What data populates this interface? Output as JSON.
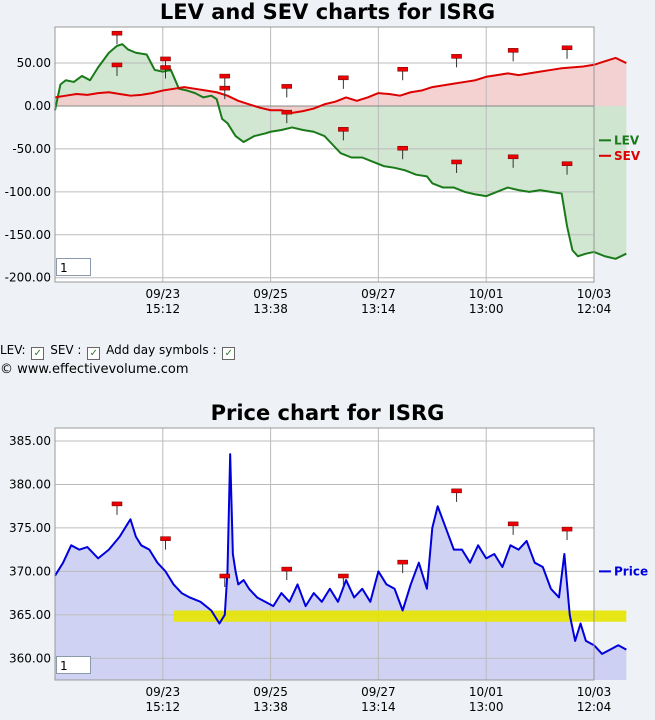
{
  "chart_data": [
    {
      "type": "line",
      "title": "LEV and SEV charts for ISRG",
      "ylim": [
        -205,
        92
      ],
      "yticks": [
        50,
        0,
        -50,
        -100,
        -150,
        -200
      ],
      "ytick_labels": [
        "50.00",
        "0.00",
        "-50.00",
        "-100.00",
        "-150.00",
        "-200.00"
      ],
      "xlim": [
        0,
        10
      ],
      "xticks": [
        2,
        4,
        6,
        8,
        10
      ],
      "xtick_labels": [
        [
          "09/23",
          "15:12"
        ],
        [
          "09/25",
          "13:38"
        ],
        [
          "09/27",
          "13:14"
        ],
        [
          "10/01",
          "13:00"
        ],
        [
          "10/03",
          "12:04"
        ]
      ],
      "legend_position": "right",
      "grid": true,
      "zoom_value": "1",
      "series": [
        {
          "name": "LEV",
          "color": "#1a7a1a",
          "fill": "#c9e3c9",
          "x": [
            0,
            0.1,
            0.2,
            0.35,
            0.5,
            0.65,
            0.8,
            1.0,
            1.15,
            1.25,
            1.35,
            1.5,
            1.7,
            1.85,
            2.0,
            2.15,
            2.3,
            2.45,
            2.6,
            2.75,
            2.9,
            3.0,
            3.1,
            3.2,
            3.35,
            3.5,
            3.7,
            3.9,
            4.0,
            4.2,
            4.4,
            4.6,
            4.8,
            5.0,
            5.15,
            5.3,
            5.5,
            5.7,
            5.9,
            6.1,
            6.3,
            6.5,
            6.7,
            6.9,
            7.0,
            7.2,
            7.4,
            7.6,
            7.8,
            8.0,
            8.2,
            8.4,
            8.6,
            8.8,
            9.0,
            9.2,
            9.4,
            9.5,
            9.6,
            9.7,
            9.85,
            10.0,
            10.2,
            10.4,
            10.6
          ],
          "y": [
            -5,
            25,
            30,
            28,
            35,
            30,
            45,
            62,
            70,
            72,
            66,
            62,
            60,
            42,
            40,
            42,
            20,
            18,
            15,
            10,
            12,
            8,
            -15,
            -20,
            -35,
            -42,
            -35,
            -32,
            -30,
            -28,
            -25,
            -28,
            -30,
            -35,
            -45,
            -55,
            -60,
            -60,
            -65,
            -70,
            -72,
            -75,
            -80,
            -82,
            -90,
            -95,
            -95,
            -100,
            -103,
            -105,
            -100,
            -95,
            -98,
            -100,
            -98,
            -100,
            -102,
            -140,
            -168,
            -175,
            -172,
            -170,
            -175,
            -178,
            -172
          ]
        },
        {
          "name": "SEV",
          "color": "#dd0000",
          "fill": "#f3caca",
          "x": [
            0,
            0.2,
            0.4,
            0.6,
            0.8,
            1.0,
            1.2,
            1.4,
            1.6,
            1.8,
            2.0,
            2.2,
            2.4,
            2.6,
            2.8,
            3.0,
            3.2,
            3.4,
            3.6,
            3.8,
            4.0,
            4.2,
            4.4,
            4.6,
            4.8,
            5.0,
            5.2,
            5.4,
            5.6,
            5.8,
            6.0,
            6.2,
            6.4,
            6.6,
            6.8,
            7.0,
            7.2,
            7.4,
            7.6,
            7.8,
            8.0,
            8.2,
            8.4,
            8.6,
            8.8,
            9.0,
            9.2,
            9.4,
            9.6,
            9.8,
            10.0,
            10.2,
            10.4,
            10.6
          ],
          "y": [
            10,
            12,
            14,
            13,
            15,
            16,
            14,
            12,
            13,
            15,
            18,
            20,
            22,
            20,
            18,
            16,
            12,
            6,
            2,
            -2,
            -5,
            -5,
            -8,
            -6,
            -3,
            2,
            5,
            10,
            6,
            10,
            15,
            14,
            12,
            16,
            18,
            22,
            24,
            26,
            28,
            30,
            34,
            36,
            38,
            36,
            38,
            40,
            42,
            44,
            45,
            46,
            48,
            52,
            56,
            50
          ]
        }
      ],
      "day_marks": {
        "LEV": {
          "x": [
            1.15,
            2.05,
            3.15,
            4.3,
            5.35,
            6.45,
            7.45,
            8.5,
            9.5
          ],
          "y": [
            72,
            42,
            8,
            -20,
            -40,
            -62,
            -78,
            -72,
            -80
          ]
        },
        "SEV": {
          "x": [
            1.15,
            2.05,
            3.15,
            4.3,
            5.35,
            6.45,
            7.45,
            8.5,
            9.5
          ],
          "y": [
            35,
            32,
            22,
            10,
            20,
            30,
            45,
            52,
            55
          ]
        }
      }
    },
    {
      "type": "area",
      "title": "Price chart for ISRG",
      "ylim": [
        357.5,
        386.5
      ],
      "yticks": [
        385,
        380,
        375,
        370,
        365,
        360
      ],
      "ytick_labels": [
        "385.00",
        "380.00",
        "375.00",
        "370.00",
        "365.00",
        "360.00"
      ],
      "xlim": [
        0,
        10
      ],
      "xticks": [
        2,
        4,
        6,
        8,
        10
      ],
      "xtick_labels": [
        [
          "09/23",
          "15:12"
        ],
        [
          "09/25",
          "13:38"
        ],
        [
          "09/27",
          "13:14"
        ],
        [
          "10/01",
          "13:00"
        ],
        [
          "10/03",
          "12:04"
        ]
      ],
      "legend_position": "right",
      "grid": true,
      "zoom_value": "1",
      "highlight_band": {
        "x": [
          2.2,
          10.6
        ],
        "y": [
          364.2,
          365.5
        ],
        "color": "#e6e600"
      },
      "series": [
        {
          "name": "Price",
          "color": "#0000dd",
          "fill": "#c8caf2",
          "x": [
            0,
            0.15,
            0.3,
            0.45,
            0.6,
            0.8,
            1.0,
            1.2,
            1.4,
            1.5,
            1.6,
            1.75,
            1.9,
            2.05,
            2.2,
            2.35,
            2.5,
            2.7,
            2.9,
            3.05,
            3.15,
            3.2,
            3.25,
            3.3,
            3.35,
            3.4,
            3.5,
            3.6,
            3.75,
            3.9,
            4.05,
            4.2,
            4.35,
            4.5,
            4.65,
            4.8,
            4.95,
            5.1,
            5.25,
            5.4,
            5.55,
            5.7,
            5.85,
            6.0,
            6.15,
            6.3,
            6.45,
            6.6,
            6.75,
            6.9,
            7.0,
            7.1,
            7.25,
            7.4,
            7.55,
            7.7,
            7.85,
            8.0,
            8.15,
            8.3,
            8.45,
            8.6,
            8.75,
            8.9,
            9.05,
            9.2,
            9.35,
            9.45,
            9.55,
            9.65,
            9.75,
            9.85,
            10.0,
            10.15,
            10.3,
            10.45,
            10.6
          ],
          "y": [
            369.5,
            371,
            373,
            372.5,
            372.8,
            371.5,
            372.5,
            374,
            376,
            374,
            373,
            372.5,
            371,
            370,
            368.5,
            367.5,
            367,
            366.5,
            365.5,
            364,
            365,
            370,
            383.5,
            372,
            370,
            368.5,
            369,
            368,
            367,
            366.5,
            366,
            367.5,
            366.5,
            368.5,
            366,
            367.5,
            366.5,
            368,
            366.5,
            369,
            367,
            368,
            366.5,
            370,
            368.5,
            368,
            365.5,
            368.5,
            371,
            368,
            375,
            377.5,
            375,
            372.5,
            372.5,
            371,
            373,
            371.5,
            372,
            370.5,
            373,
            372.5,
            373.5,
            371,
            370.5,
            368,
            367,
            372,
            365,
            362,
            364,
            362,
            361.5,
            360.5,
            361,
            361.5,
            361
          ]
        }
      ],
      "day_marks": {
        "Price": {
          "x": [
            1.15,
            2.05,
            3.15,
            4.3,
            5.35,
            6.45,
            7.45,
            8.5,
            9.5
          ],
          "y": [
            376.5,
            372.5,
            368.2,
            369,
            368.2,
            369.8,
            378,
            374.2,
            373.6
          ]
        }
      }
    }
  ],
  "controls": {
    "lev_label": "LEV:",
    "sev_label": "SEV :",
    "day_label": "Add day symbols :",
    "check_glyph": "✓",
    "copyright": "© www.effectivevolume.com"
  }
}
